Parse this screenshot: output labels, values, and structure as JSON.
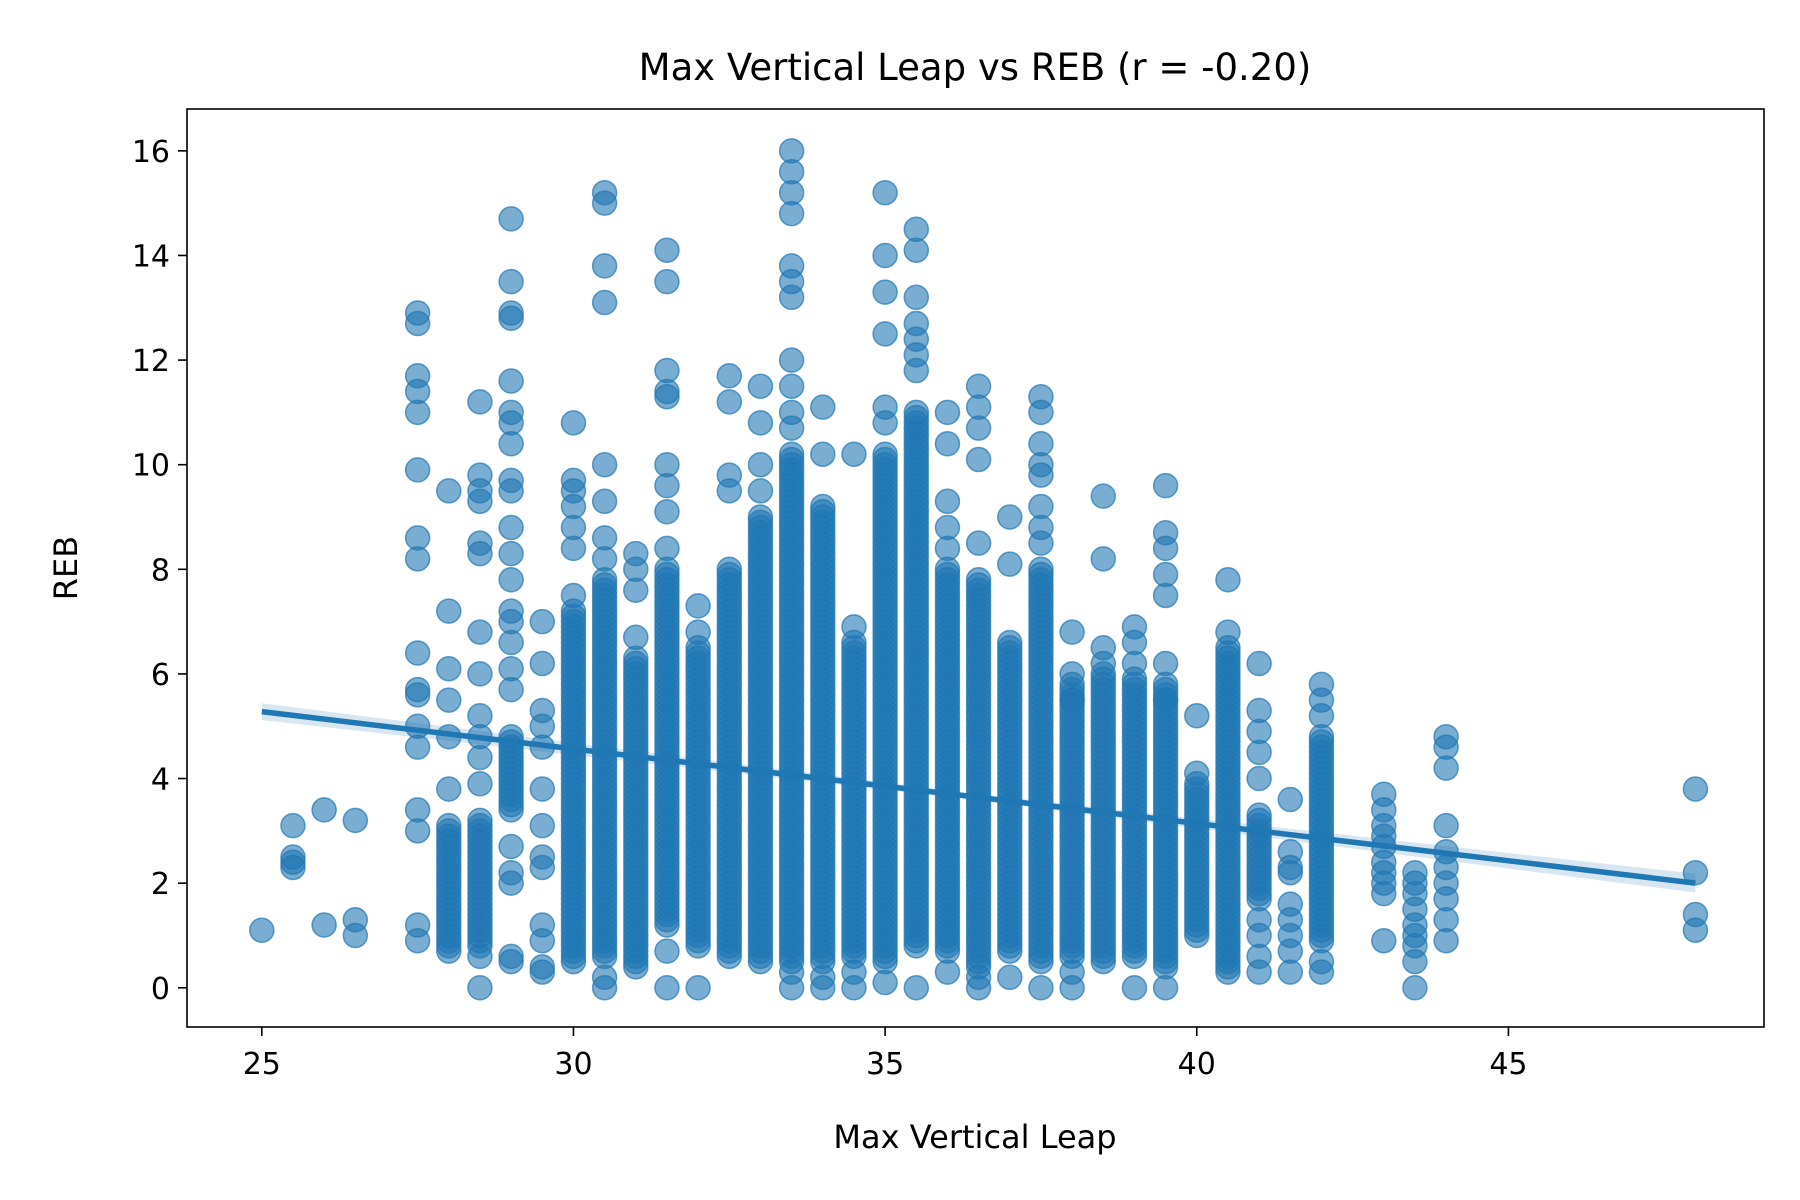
{
  "chart_data": {
    "type": "scatter",
    "title": "Max Vertical Leap vs REB (r = -0.20)",
    "xlabel": "Max Vertical Leap",
    "ylabel": "REB",
    "xlim": [
      23.8,
      49.1
    ],
    "ylim": [
      -0.75,
      16.8
    ],
    "x_ticks": [
      25,
      30,
      35,
      40,
      45
    ],
    "y_ticks": [
      0,
      2,
      4,
      6,
      8,
      10,
      12,
      14,
      16
    ],
    "grid": false,
    "legend": "none",
    "colors": {
      "points": "#1f77b4",
      "line": "#1f77b4",
      "band": "#1f77b4"
    },
    "regression": {
      "x": [
        25,
        48
      ],
      "y": [
        5.28,
        2.0
      ]
    },
    "columns": [
      {
        "x": 25.0,
        "y": [
          1.1
        ]
      },
      {
        "x": 25.5,
        "y": [
          3.1,
          2.5,
          2.4,
          2.3
        ]
      },
      {
        "x": 26.0,
        "y": [
          3.4,
          1.2
        ]
      },
      {
        "x": 26.5,
        "y": [
          3.2,
          1.3,
          1.0
        ]
      },
      {
        "x": 27.5,
        "y": [
          12.9,
          12.7,
          11.7,
          11.4,
          11.0,
          9.9,
          8.6,
          8.2,
          6.4,
          5.7,
          5.6,
          5.0,
          4.6,
          3.4,
          3.0,
          1.2,
          0.9
        ]
      },
      {
        "x": 28.0,
        "y": [
          9.5,
          7.2,
          6.1,
          5.5,
          4.8,
          3.8
        ],
        "dense": [
          0.7,
          3.1
        ]
      },
      {
        "x": 28.5,
        "y": [
          11.2,
          9.8,
          9.5,
          9.3,
          8.5,
          8.3,
          6.8,
          6.0,
          5.2,
          4.8,
          4.4,
          3.9,
          0.6,
          0.0
        ],
        "dense": [
          0.8,
          3.2
        ]
      },
      {
        "x": 29.0,
        "y": [
          14.7,
          13.5,
          12.9,
          12.8,
          11.6,
          11.0,
          10.8,
          10.4,
          9.7,
          9.5,
          8.8,
          8.3,
          7.8,
          7.2,
          7.0,
          6.6,
          6.1,
          5.7,
          2.7,
          2.2,
          2.0,
          0.6,
          0.5
        ],
        "dense": [
          3.4,
          4.8
        ]
      },
      {
        "x": 29.5,
        "y": [
          7.0,
          6.2,
          5.3,
          5.0,
          4.6,
          3.8,
          3.1,
          2.5,
          2.3,
          1.2,
          0.9,
          0.4,
          0.3
        ]
      },
      {
        "x": 30.0,
        "y": [
          10.8,
          9.7,
          9.5,
          9.2,
          8.8,
          8.4,
          7.5
        ],
        "dense": [
          0.5,
          7.2
        ]
      },
      {
        "x": 30.5,
        "y": [
          15.2,
          15.0,
          13.8,
          13.1,
          10.0,
          9.3,
          8.6,
          8.2,
          0.2,
          0.0
        ],
        "dense": [
          0.6,
          7.8
        ]
      },
      {
        "x": 31.0,
        "y": [
          8.3,
          8.0,
          7.6,
          6.7
        ],
        "dense": [
          0.4,
          6.3
        ]
      },
      {
        "x": 31.5,
        "y": [
          14.1,
          13.5,
          11.8,
          11.4,
          11.3,
          10.0,
          9.6,
          9.1,
          8.4,
          0.7,
          0.0
        ],
        "dense": [
          1.2,
          8.0
        ]
      },
      {
        "x": 32.0,
        "y": [
          7.3,
          6.8,
          0.0
        ],
        "dense": [
          0.8,
          6.5
        ]
      },
      {
        "x": 32.5,
        "y": [
          11.7,
          11.2,
          9.8,
          9.5
        ],
        "dense": [
          0.6,
          8.0
        ]
      },
      {
        "x": 33.0,
        "y": [
          11.5,
          10.8,
          10.0,
          9.5
        ],
        "dense": [
          0.5,
          9.0
        ]
      },
      {
        "x": 33.5,
        "y": [
          16.0,
          15.6,
          15.2,
          14.8,
          13.8,
          13.5,
          13.2,
          12.0,
          11.5,
          11.0,
          10.7,
          0.3,
          0.0
        ],
        "dense": [
          0.5,
          10.2
        ]
      },
      {
        "x": 34.0,
        "y": [
          11.1,
          10.2,
          0.2,
          0.0
        ],
        "dense": [
          0.5,
          9.2
        ]
      },
      {
        "x": 34.5,
        "y": [
          10.2,
          6.9,
          0.3,
          0.0
        ],
        "dense": [
          0.6,
          6.6
        ]
      },
      {
        "x": 35.0,
        "y": [
          15.2,
          14.0,
          13.3,
          12.5,
          11.1,
          10.8,
          0.1
        ],
        "dense": [
          0.5,
          10.2
        ]
      },
      {
        "x": 35.5,
        "y": [
          14.5,
          14.1,
          13.2,
          12.7,
          12.4,
          12.1,
          11.8,
          0.0
        ],
        "dense": [
          0.8,
          11.0
        ]
      },
      {
        "x": 36.0,
        "y": [
          11.0,
          10.4,
          9.3,
          8.8,
          8.4,
          0.3
        ],
        "dense": [
          0.7,
          8.0
        ]
      },
      {
        "x": 36.5,
        "y": [
          11.5,
          11.1,
          10.7,
          10.1,
          8.5,
          0.2,
          0.0
        ],
        "dense": [
          0.4,
          7.8
        ]
      },
      {
        "x": 37.0,
        "y": [
          9.0,
          8.1,
          0.2
        ],
        "dense": [
          0.7,
          6.6
        ]
      },
      {
        "x": 37.5,
        "y": [
          11.3,
          11.0,
          10.4,
          10.0,
          9.8,
          9.2,
          8.8,
          8.5,
          0.0
        ],
        "dense": [
          0.5,
          8.0
        ]
      },
      {
        "x": 38.0,
        "y": [
          6.8,
          6.0,
          5.5,
          0.3,
          0.0
        ],
        "dense": [
          0.6,
          5.8
        ]
      },
      {
        "x": 38.5,
        "y": [
          9.4,
          8.2,
          6.5,
          6.2
        ],
        "dense": [
          0.5,
          6.0
        ]
      },
      {
        "x": 39.0,
        "y": [
          6.9,
          6.6,
          6.2,
          0.0
        ],
        "dense": [
          0.6,
          5.9
        ]
      },
      {
        "x": 39.5,
        "y": [
          9.6,
          8.7,
          8.4,
          7.9,
          7.5,
          6.2,
          5.5,
          0.0
        ],
        "dense": [
          0.4,
          5.8
        ]
      },
      {
        "x": 40.0,
        "y": [
          5.2,
          4.1
        ],
        "dense": [
          1.0,
          3.9
        ]
      },
      {
        "x": 40.5,
        "y": [
          7.8,
          6.8
        ],
        "dense": [
          0.3,
          6.5
        ]
      },
      {
        "x": 41.0,
        "y": [
          6.2,
          5.3,
          4.9,
          4.5,
          4.0,
          1.3,
          1.0,
          0.6,
          0.3
        ],
        "dense": [
          1.7,
          3.3
        ]
      },
      {
        "x": 41.5,
        "y": [
          3.6,
          2.6,
          2.3,
          2.2,
          1.6,
          1.3,
          1.0,
          0.7,
          0.3
        ]
      },
      {
        "x": 42.0,
        "y": [
          5.8,
          5.5,
          5.2,
          0.5,
          0.3
        ],
        "dense": [
          0.9,
          4.8
        ]
      },
      {
        "x": 43.0,
        "y": [
          3.7,
          3.4,
          3.1,
          2.9,
          2.7,
          2.4,
          2.2,
          2.0,
          1.8,
          0.9
        ]
      },
      {
        "x": 43.5,
        "y": [
          2.2,
          2.0,
          1.8,
          1.5,
          1.2,
          1.0,
          0.8,
          0.5,
          0.0
        ]
      },
      {
        "x": 44.0,
        "y": [
          4.8,
          4.6,
          4.2,
          3.1,
          2.6,
          2.3,
          2.0,
          1.7,
          1.3,
          0.9
        ]
      },
      {
        "x": 48.0,
        "y": [
          3.8,
          2.2,
          1.4,
          1.1
        ]
      }
    ]
  }
}
